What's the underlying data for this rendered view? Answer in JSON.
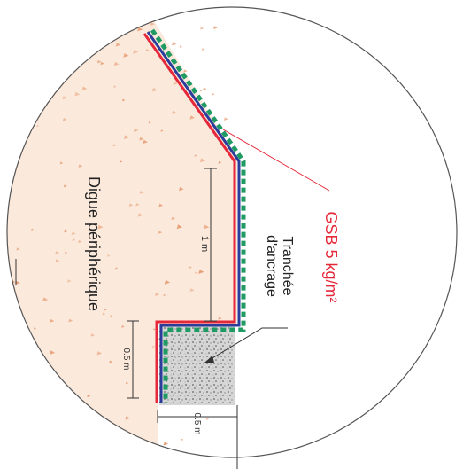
{
  "labels": {
    "embankment": "Digue périphérique",
    "trench_line1": "Tranchée",
    "trench_line2": "d'ancrage",
    "geomembrane": "GSB 5 kg/m²",
    "dim_height_1m": "1 m",
    "dim_height_05m": "0.5 m",
    "dim_width_05m": "0.5 m"
  },
  "colors": {
    "embankment_fill": "#fbe9dc",
    "soil_speckle": "#e8a078",
    "geomembrane_red": "#e5283a",
    "geotextile_blue": "#2c3c9a",
    "geotextile_green_dashed": "#1f9a63",
    "trench_fill": "#cfcfcf",
    "outline": "#333333"
  }
}
